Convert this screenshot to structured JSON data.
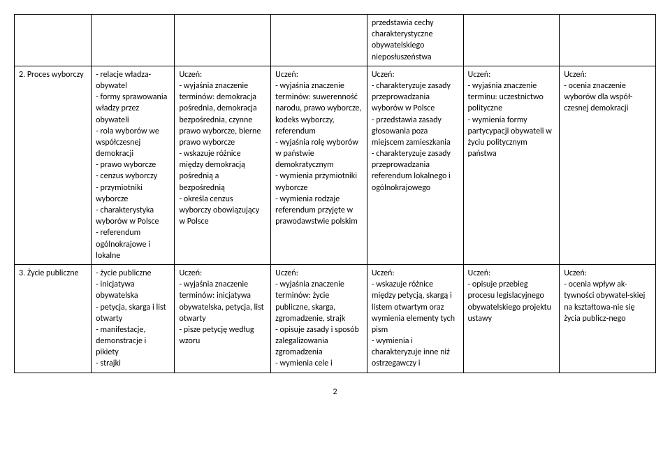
{
  "table": {
    "rows": [
      {
        "cells": [
          "",
          "",
          "",
          "",
          "przedstawia cechy charakterystyczne obywatelskiego nieposłuszeństwa",
          "",
          ""
        ]
      },
      {
        "cells": [
          "2. Proces wyborczy",
          "- relacje władza-obywatel\n- formy sprawowania władzy przez obywateli\n- rola wyborów we współczesnej demokracji\n- prawo wyborcze\n- cenzus wyborczy\n- przymiotniki wyborcze\n- charakterystyka wyborów w Polsce\n- referendum ogólnokrajowe i lokalne",
          "Uczeń:\n- wyjaśnia znaczenie terminów: demokracja pośrednia, demokracja bezpośrednia, czynne prawo wyborcze, bierne prawo wyborcze\n- wskazuje różnice między demokracją pośrednią a bezpośrednią\n- określa cenzus wyborczy obowiązujący w Polsce",
          "Uczeń:\n- wyjaśnia znaczenie terminów: suwerenność narodu, prawo wyborcze, kodeks wyborczy, referendum\n- wyjaśnia rolę wyborów w państwie demokratycznym\n- wymienia przymiotniki wyborcze\n- wymienia rodzaje referendum przyjęte w prawodawstwie polskim",
          "Uczeń:\n- charakteryzuje zasady przeprowadzania wyborów w Polsce\n- przedstawia zasady głosowania poza miejscem zamieszkania\n- charakteryzuje zasady przeprowadzania referendum lokalnego i ogólnokrajowego",
          "Uczeń:\n- wyjaśnia znaczenie terminu: uczestnictwo polityczne\n- wymienia formy partycypacji obywateli w życiu politycznym państwa",
          "Uczeń:\n- ocenia znaczenie wyborów dla współ-czesnej demokracji"
        ]
      },
      {
        "cells": [
          "3. Życie publiczne",
          "- życie publiczne\n- inicjatywa obywatelska\n- petycja, skarga i list otwarty\n- manifestacje, demonstracje i pikiety\n- strajki",
          "Uczeń:\n- wyjaśnia znaczenie terminów: inicjatywa obywatelska, petycja, list otwarty\n- pisze petycję według wzoru",
          "Uczeń:\n- wyjaśnia znaczenie terminów: życie publiczne, skarga, zgromadzenie, strajk\n- opisuje zasady i sposób zalegalizowania zgromadzenia\n- wymienia cele i",
          "Uczeń:\n- wskazuje różnice między petycją, skargą i listem otwartym oraz wymienia elementy tych pism\n- wymienia i charakteryzuje inne niż ostrzegawczy i",
          "Uczeń:\n- opisuje przebieg procesu legislacyjnego obywatelskiego projektu ustawy",
          "Uczeń:\n- ocenia wpływ ak-tywności obywatel-skiej na kształtowa-nie się życia publicz-nego"
        ]
      }
    ]
  },
  "page_number": "2",
  "style": {
    "fontsize_body": 12,
    "font_family": "Calibri",
    "border_color": "#000000",
    "background_color": "#ffffff",
    "text_color": "#000000",
    "column_widths_pct": [
      12,
      13,
      15,
      15,
      15,
      15,
      15
    ]
  }
}
